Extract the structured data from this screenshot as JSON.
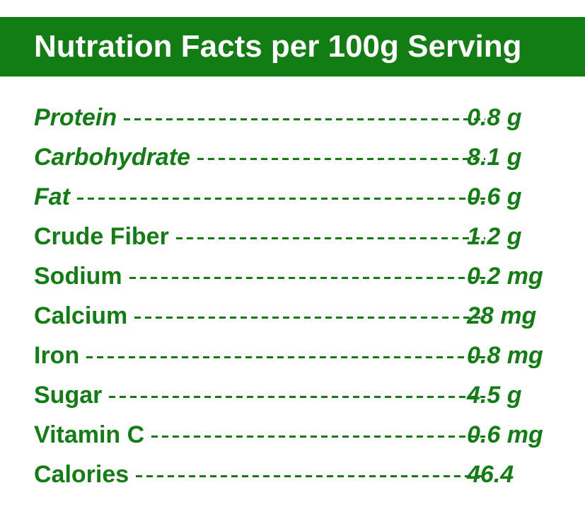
{
  "header": {
    "title": "Nutration Facts per 100g Serving",
    "background": "#127d12"
  },
  "colors": {
    "text": "#127d12"
  },
  "nutrients": [
    {
      "label": "Protein",
      "value": "0.8 g",
      "italic": true
    },
    {
      "label": "Carbohydrate",
      "value": "8.1 g",
      "italic": true
    },
    {
      "label": "Fat",
      "value": "0.6 g",
      "italic": true
    },
    {
      "label": "Crude Fiber",
      "value": "1.2 g",
      "italic": false
    },
    {
      "label": "Sodium",
      "value": "0.2 mg",
      "italic": false
    },
    {
      "label": "Calcium",
      "value": "28 mg",
      "italic": false
    },
    {
      "label": "Iron",
      "value": "0.8 mg",
      "italic": false
    },
    {
      "label": "Sugar",
      "value": "4.5 g",
      "italic": false
    },
    {
      "label": "Vitamin C",
      "value": "0.6 mg",
      "italic": false
    },
    {
      "label": "Calories",
      "value": "46.4",
      "italic": false
    }
  ]
}
